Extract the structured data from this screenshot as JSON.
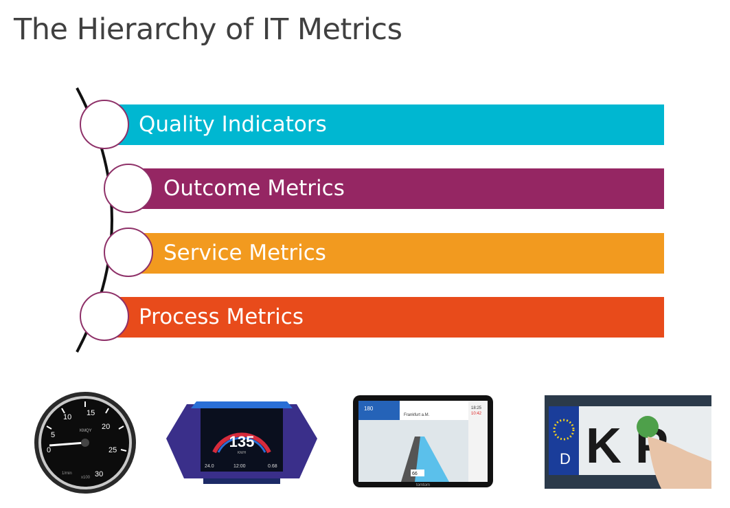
{
  "slide": {
    "title": "The Hierarchy of IT Metrics"
  },
  "levels": [
    {
      "label": "Quality Indicators",
      "color": "#00b7d1"
    },
    {
      "label": "Outcome Metrics",
      "color": "#952663"
    },
    {
      "label": "Service Metrics",
      "color": "#f29a1f"
    },
    {
      "label": "Process Metrics",
      "color": "#e84b1b"
    }
  ],
  "photos": {
    "tachometer": {
      "ticks": [
        "0",
        "5",
        "10",
        "15",
        "20",
        "25",
        "30"
      ],
      "small_label": "1/min",
      "small_label2": "x100",
      "brand": "KMQY"
    },
    "dashboard_display": {
      "speed": "135",
      "unit": "KM/H",
      "left_value": "24.0",
      "center_value": "12:00",
      "right_value": "0.68"
    },
    "gps_navigator": {
      "speed_limit": "180",
      "distance": "66",
      "brand": "tomtom",
      "time": "18:25",
      "time2": "10:42",
      "city": "Frankfurt a.M."
    },
    "license_plate": {
      "country": "D",
      "letters": "K  P"
    }
  }
}
